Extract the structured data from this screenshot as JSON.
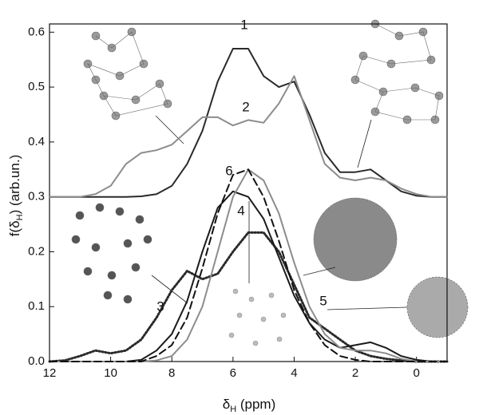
{
  "chart_data": {
    "type": "line",
    "x_label": {
      "main": "δ",
      "sub": "H",
      "end": " (ppm)"
    },
    "y_label": {
      "main": "f(δ",
      "sub": "H",
      "end": ")  (arb.un.)"
    },
    "x": [
      12,
      11.5,
      11,
      10.5,
      10,
      9.5,
      9,
      8.5,
      8,
      7.5,
      7,
      6.5,
      6,
      5.5,
      5,
      4.5,
      4,
      3.5,
      3,
      2.5,
      2,
      1.5,
      1,
      0.5,
      0,
      -0.5,
      -1
    ],
    "series": [
      {
        "name": "1",
        "color": "#2a2a2a",
        "dash": "solid",
        "values": [
          0.3,
          0.3,
          0.3,
          0.3,
          0.3,
          0.3,
          0.301,
          0.305,
          0.32,
          0.36,
          0.42,
          0.51,
          0.57,
          0.57,
          0.52,
          0.5,
          0.51,
          0.45,
          0.38,
          0.345,
          0.345,
          0.35,
          0.33,
          0.31,
          0.302,
          0.3,
          0.3
        ]
      },
      {
        "name": "2",
        "color": "#8c8c8c",
        "dash": "solid",
        "values": [
          0.3,
          0.3,
          0.3,
          0.305,
          0.32,
          0.36,
          0.38,
          0.385,
          0.395,
          0.42,
          0.445,
          0.445,
          0.43,
          0.44,
          0.435,
          0.47,
          0.52,
          0.44,
          0.36,
          0.335,
          0.33,
          0.335,
          0.33,
          0.315,
          0.305,
          0.3,
          0.3
        ]
      },
      {
        "name": "3",
        "color": "#2a2a2a",
        "dash": "dotted",
        "values": [
          0,
          0.002,
          0.01,
          0.02,
          0.015,
          0.02,
          0.04,
          0.08,
          0.13,
          0.165,
          0.15,
          0.16,
          0.2,
          0.235,
          0.235,
          0.2,
          0.14,
          0.08,
          0.06,
          0.04,
          0.02,
          0.01,
          0.005,
          0.002,
          0,
          0,
          0
        ]
      },
      {
        "name": "4",
        "color": "#1a1a1a",
        "dash": "solid",
        "values": [
          0,
          0,
          0,
          0,
          0,
          0,
          0.003,
          0.02,
          0.05,
          0.11,
          0.2,
          0.28,
          0.31,
          0.3,
          0.26,
          0.19,
          0.12,
          0.07,
          0.04,
          0.025,
          0.03,
          0.035,
          0.025,
          0.01,
          0.003,
          0,
          0
        ]
      },
      {
        "name": "5",
        "color": "#8c8c8c",
        "dash": "solid",
        "values": [
          0,
          0,
          0,
          0,
          0,
          0,
          0,
          0.002,
          0.01,
          0.04,
          0.1,
          0.2,
          0.3,
          0.35,
          0.33,
          0.27,
          0.18,
          0.1,
          0.05,
          0.025,
          0.02,
          0.02,
          0.015,
          0.005,
          0,
          0,
          0
        ]
      },
      {
        "name": "6",
        "color": "#111111",
        "dash": "dashed",
        "values": [
          0,
          0,
          0,
          0,
          0,
          0,
          0,
          0.01,
          0.03,
          0.08,
          0.17,
          0.27,
          0.34,
          0.35,
          0.3,
          0.22,
          0.13,
          0.07,
          0.03,
          0.01,
          0.003,
          0,
          0,
          0,
          0,
          0,
          0
        ]
      }
    ],
    "xlim": [
      12,
      -1
    ],
    "xticks": [
      12,
      10,
      8,
      6,
      4,
      2,
      0
    ],
    "ylim": [
      0,
      0.615
    ],
    "yticks": [
      {
        "value": 0,
        "label": "0.0"
      },
      0.1,
      0.2,
      0.3,
      0.4,
      0.5,
      0.6
    ],
    "grid": false
  }
}
